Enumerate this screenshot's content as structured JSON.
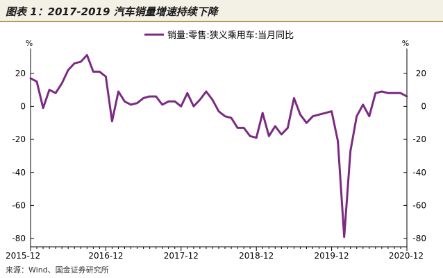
{
  "header": {
    "title": "图表 1：2017-2019 汽车销量增速持续下降"
  },
  "footer": {
    "source": "来源：Wind、国金证券研究所"
  },
  "colors": {
    "series": "#7b2a82",
    "title_bg": "#f3f1e6",
    "title_rule": "#b8955a"
  },
  "chart_data": {
    "type": "line",
    "title": "",
    "y_unit_left": "%",
    "y_unit_right": "%",
    "ylim": [
      -85,
      35
    ],
    "yticks": [
      20,
      0,
      -20,
      -40,
      -60,
      -80
    ],
    "x_tick_labels": [
      "2015-12",
      "2016-12",
      "2017-12",
      "2018-12",
      "2019-12",
      "2020-12"
    ],
    "x_tick_index": [
      0,
      12,
      24,
      36,
      48,
      60
    ],
    "grid": false,
    "legend_position": "top-center",
    "series": [
      {
        "name": "销量:零售:狭义乘用车:当月同比",
        "values": [
          17,
          15,
          -1,
          10,
          8,
          14,
          22,
          26,
          27,
          31,
          21,
          21,
          18,
          -9,
          9,
          3,
          1,
          2,
          5,
          6,
          6,
          1,
          3,
          3,
          0,
          8,
          0,
          4,
          9,
          4,
          -3,
          -6,
          -7,
          -13,
          -13,
          -18,
          -19,
          -4,
          -18,
          -12,
          -17,
          -13,
          5,
          -5,
          -10,
          -6,
          -5,
          -4,
          -3,
          -21,
          -79,
          -27,
          -6,
          1,
          -6,
          8,
          9,
          8,
          8,
          8,
          6
        ]
      }
    ]
  }
}
